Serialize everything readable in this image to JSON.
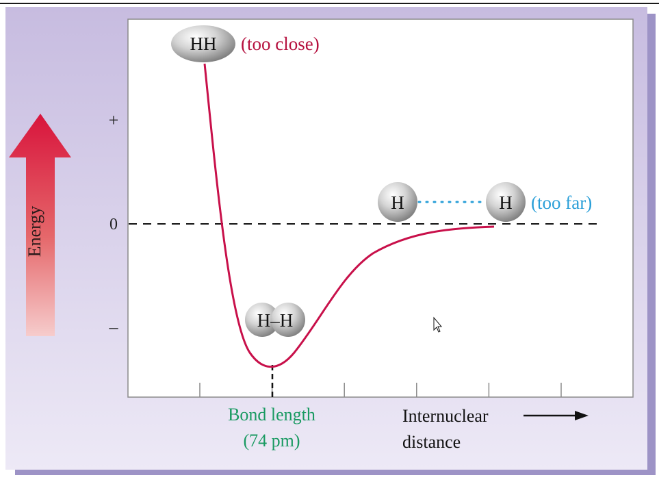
{
  "chart_data": {
    "type": "line",
    "title": "",
    "xlabel": "Internuclear distance",
    "xlabel_lines": [
      "Internuclear",
      "distance"
    ],
    "ylabel": "Energy",
    "y_ticks": [
      "+",
      "0",
      "–"
    ],
    "bond_length": {
      "line1": "Bond length",
      "line2": "(74 pm)",
      "value_pm": 74
    },
    "annotations": {
      "too_close": {
        "molecule": "HH",
        "label": "(too close)"
      },
      "bonded": {
        "molecule": "H–H"
      },
      "too_far": {
        "atom_left": "H",
        "atom_right": "H",
        "label": "(too far)"
      }
    },
    "zero_line": "dashed",
    "x_tick_count": 6
  },
  "colors": {
    "curve": "#c8104a",
    "bond_length_text": "#1a9a62",
    "too_far_text": "#2a9fd8",
    "too_close_text": "#b5103e",
    "panel_bg": "#cdc3e3",
    "panel_shadow": "#9d93c6",
    "energy_arrow_top": "#d8143c",
    "energy_arrow_bottom": "#f6cccc"
  },
  "icons": [
    "energy-arrow-icon",
    "x-axis-arrow-icon",
    "mouse-cursor-icon"
  ]
}
